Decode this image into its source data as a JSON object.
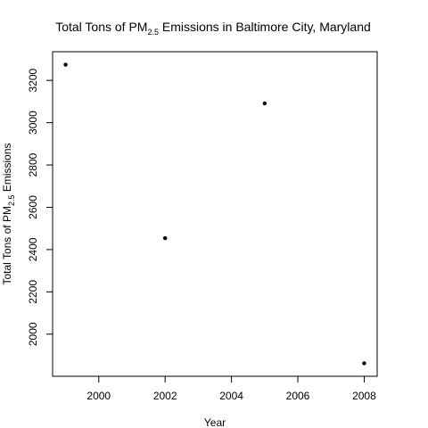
{
  "chart_data": {
    "type": "scatter",
    "title": {
      "prefix": "Total Tons of PM",
      "subscript": "2.5",
      "suffix": " Emissions in Baltimore City, Maryland"
    },
    "xlabel": "Year",
    "ylabel": {
      "prefix": "Total Tons of PM",
      "subscript": "2.5",
      "suffix": " Emissions"
    },
    "x": [
      1999,
      2002,
      2005,
      2008
    ],
    "y": [
      3274.18,
      2453.916,
      3091.354,
      1862.282
    ],
    "xlim": [
      1999,
      2008
    ],
    "ylim": [
      1862.282,
      3274.18
    ],
    "xticks": [
      2000,
      2002,
      2004,
      2006,
      2008
    ],
    "yticks": [
      2000,
      2200,
      2400,
      2600,
      2800,
      3000,
      3200
    ],
    "grid": false,
    "legend": "none",
    "point_color": "#000000"
  }
}
